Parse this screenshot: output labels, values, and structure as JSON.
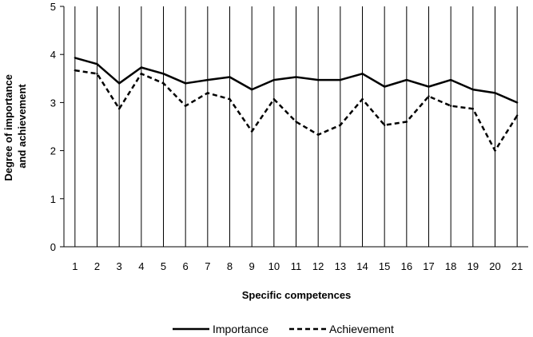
{
  "chart_data": {
    "type": "line",
    "title": "",
    "xlabel": "Specific competences",
    "ylabel_lines": [
      "Degree of importance",
      "and  achievement"
    ],
    "x": [
      1,
      2,
      3,
      4,
      5,
      6,
      7,
      8,
      9,
      10,
      11,
      12,
      13,
      14,
      15,
      16,
      17,
      18,
      19,
      20,
      21
    ],
    "ylim": [
      0,
      5
    ],
    "yticks": [
      0,
      1,
      2,
      3,
      4,
      5
    ],
    "grid": "vertical lines at each category",
    "legend_position": "bottom",
    "series": [
      {
        "name": "Importance",
        "style": "solid",
        "color": "#000000",
        "values": [
          3.93,
          3.8,
          3.4,
          3.73,
          3.6,
          3.4,
          3.47,
          3.53,
          3.27,
          3.47,
          3.53,
          3.47,
          3.47,
          3.6,
          3.33,
          3.47,
          3.33,
          3.47,
          3.27,
          3.2,
          3.0
        ]
      },
      {
        "name": "Achievement",
        "style": "dashed",
        "color": "#000000",
        "values": [
          3.67,
          3.6,
          2.87,
          3.6,
          3.4,
          2.93,
          3.2,
          3.07,
          2.4,
          3.07,
          2.6,
          2.33,
          2.53,
          3.07,
          2.53,
          2.6,
          3.13,
          2.93,
          2.87,
          2.0,
          2.73
        ]
      }
    ]
  }
}
